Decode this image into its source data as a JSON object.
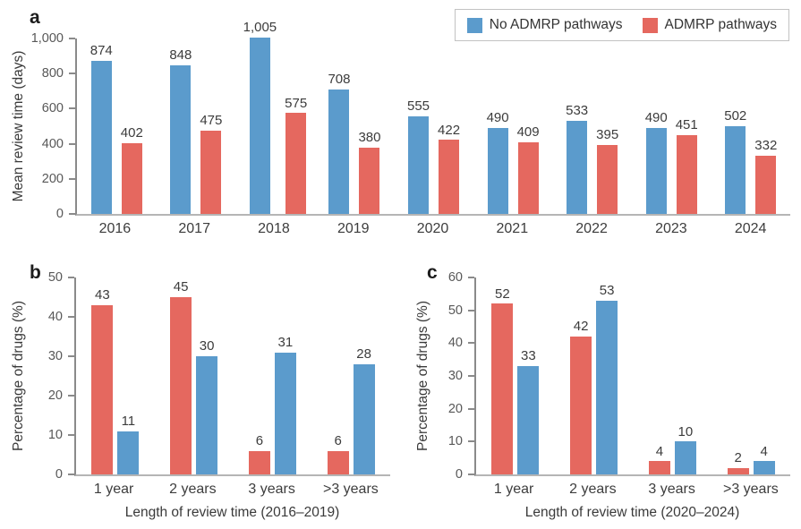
{
  "colors": {
    "blue": "#5b9bcc",
    "red": "#e5685f"
  },
  "legend": {
    "items": [
      {
        "label": "No ADMRP pathways",
        "color_key": "blue"
      },
      {
        "label": "ADMRP pathways",
        "color_key": "red"
      }
    ]
  },
  "chart_data": [
    {
      "id": "a",
      "type": "bar",
      "letter": "a",
      "title": "",
      "ylabel": "Mean review time (days)",
      "xlabel": "",
      "ylim": [
        0,
        1000
      ],
      "ymax": 1000,
      "yticks": [
        "0",
        "200",
        "400",
        "600",
        "800",
        "1,000"
      ],
      "grid": "off",
      "legend_position": "top-right",
      "categories": [
        "2016",
        "2017",
        "2018",
        "2019",
        "2020",
        "2021",
        "2022",
        "2023",
        "2024"
      ],
      "series": [
        {
          "name": "No ADMRP pathways",
          "color_key": "blue",
          "values": [
            874,
            848,
            1005,
            708,
            555,
            490,
            533,
            490,
            502
          ],
          "labels": [
            "874",
            "848",
            "1,005",
            "708",
            "555",
            "490",
            "533",
            "490",
            "502"
          ]
        },
        {
          "name": "ADMRP pathways",
          "color_key": "red",
          "values": [
            402,
            475,
            575,
            380,
            422,
            409,
            395,
            451,
            332
          ],
          "labels": [
            "402",
            "475",
            "575",
            "380",
            "422",
            "409",
            "395",
            "451",
            "332"
          ]
        }
      ]
    },
    {
      "id": "b",
      "type": "bar",
      "letter": "b",
      "title": "",
      "ylabel": "Percentage of drugs (%)",
      "xlabel": "Length of review time (2016–2019)",
      "ylim": [
        0,
        50
      ],
      "ymax": 50,
      "yticks": [
        "0",
        "10",
        "20",
        "30",
        "40",
        "50"
      ],
      "grid": "off",
      "categories": [
        "1 year",
        "2 years",
        "3 years",
        ">3 years"
      ],
      "series": [
        {
          "name": "ADMRP pathways",
          "color_key": "red",
          "values": [
            43,
            45,
            6,
            6
          ],
          "labels": [
            "43",
            "45",
            "6",
            "6"
          ]
        },
        {
          "name": "No ADMRP pathways",
          "color_key": "blue",
          "values": [
            11,
            30,
            31,
            28
          ],
          "labels": [
            "11",
            "30",
            "31",
            "28"
          ]
        }
      ]
    },
    {
      "id": "c",
      "type": "bar",
      "letter": "c",
      "title": "",
      "ylabel": "Percentage of drugs (%)",
      "xlabel": "Length of review time (2020–2024)",
      "ylim": [
        0,
        60
      ],
      "ymax": 60,
      "yticks": [
        "0",
        "10",
        "20",
        "30",
        "40",
        "50",
        "60"
      ],
      "grid": "off",
      "categories": [
        "1 year",
        "2 years",
        "3 years",
        ">3 years"
      ],
      "series": [
        {
          "name": "ADMRP pathways",
          "color_key": "red",
          "values": [
            52,
            42,
            4,
            2
          ],
          "labels": [
            "52",
            "42",
            "4",
            "2"
          ]
        },
        {
          "name": "No ADMRP pathways",
          "color_key": "blue",
          "values": [
            33,
            53,
            10,
            4
          ],
          "labels": [
            "33",
            "53",
            "10",
            "4"
          ]
        }
      ]
    }
  ]
}
